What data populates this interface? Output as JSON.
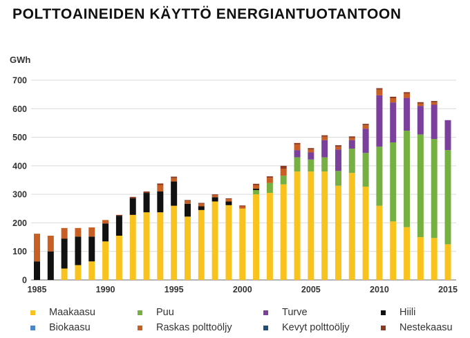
{
  "title": "POLTTOAINEIDEN KÄYTTÖ ENERGIANTUOTANTOON",
  "chart_data": {
    "type": "bar",
    "stacked": true,
    "ylabel": "GWh",
    "ylim": [
      0,
      700
    ],
    "yticks": [
      0,
      100,
      200,
      300,
      400,
      500,
      600,
      700
    ],
    "xticks": [
      "1985",
      "1990",
      "1995",
      "2000",
      "2005",
      "2010",
      "2015"
    ],
    "grid": true,
    "legend_position": "bottom",
    "categories": [
      "1985",
      "1986",
      "1987",
      "1988",
      "1989",
      "1990",
      "1991",
      "1992",
      "1993",
      "1994",
      "1995",
      "1996",
      "1997",
      "1998",
      "1999",
      "2000",
      "2001",
      "2002",
      "2003",
      "2004",
      "2005",
      "2006",
      "2007",
      "2008",
      "2009",
      "2010",
      "2011",
      "2012",
      "2013",
      "2014",
      "2015"
    ],
    "series": [
      {
        "name": "Maakaasu",
        "color": "#f9c31f",
        "values": [
          0,
          0,
          40,
          52,
          65,
          135,
          155,
          228,
          237,
          237,
          260,
          222,
          245,
          275,
          262,
          250,
          300,
          305,
          335,
          380,
          380,
          380,
          330,
          375,
          327,
          260,
          205,
          185,
          150,
          147,
          125
        ]
      },
      {
        "name": "Puu",
        "color": "#76b043",
        "values": [
          0,
          0,
          0,
          0,
          0,
          0,
          0,
          0,
          0,
          0,
          0,
          0,
          0,
          0,
          0,
          0,
          15,
          35,
          30,
          50,
          42,
          50,
          52,
          85,
          118,
          207,
          277,
          338,
          360,
          347,
          330
        ]
      },
      {
        "name": "Turve",
        "color": "#7b3f9c",
        "values": [
          0,
          0,
          0,
          0,
          0,
          0,
          0,
          0,
          0,
          0,
          0,
          0,
          0,
          0,
          0,
          0,
          0,
          0,
          0,
          25,
          25,
          60,
          75,
          30,
          85,
          180,
          140,
          115,
          100,
          120,
          105
        ]
      },
      {
        "name": "Hiili",
        "color": "#111111",
        "values": [
          65,
          100,
          105,
          100,
          87,
          63,
          70,
          58,
          68,
          73,
          85,
          45,
          13,
          15,
          13,
          0,
          5,
          0,
          0,
          0,
          0,
          0,
          0,
          0,
          0,
          0,
          0,
          0,
          0,
          0,
          0
        ]
      },
      {
        "name": "Biokaasu",
        "color": "#4d86c6",
        "values": [
          0,
          0,
          0,
          0,
          0,
          0,
          0,
          0,
          0,
          0,
          0,
          0,
          0,
          0,
          0,
          0,
          0,
          0,
          0,
          0,
          0,
          0,
          0,
          0,
          0,
          0,
          0,
          0,
          0,
          0,
          0
        ]
      },
      {
        "name": "Raskas polttoöljy",
        "color": "#c85f24",
        "values": [
          97,
          55,
          37,
          30,
          32,
          12,
          0,
          0,
          0,
          23,
          12,
          10,
          9,
          7,
          8,
          8,
          12,
          18,
          25,
          20,
          10,
          12,
          10,
          8,
          12,
          20,
          15,
          15,
          8,
          8,
          0
        ]
      },
      {
        "name": "Kevyt polttoöljy",
        "color": "#1f4e79",
        "values": [
          0,
          0,
          0,
          0,
          0,
          0,
          0,
          0,
          0,
          0,
          0,
          0,
          0,
          0,
          0,
          0,
          0,
          0,
          0,
          0,
          0,
          0,
          0,
          0,
          0,
          0,
          0,
          0,
          0,
          0,
          0
        ]
      },
      {
        "name": "Nestekaasu",
        "color": "#8b3a23",
        "values": [
          0,
          0,
          0,
          0,
          0,
          0,
          3,
          5,
          5,
          5,
          5,
          3,
          3,
          3,
          3,
          3,
          5,
          5,
          10,
          5,
          5,
          5,
          5,
          5,
          5,
          5,
          5,
          5,
          5,
          5,
          0
        ]
      }
    ]
  }
}
